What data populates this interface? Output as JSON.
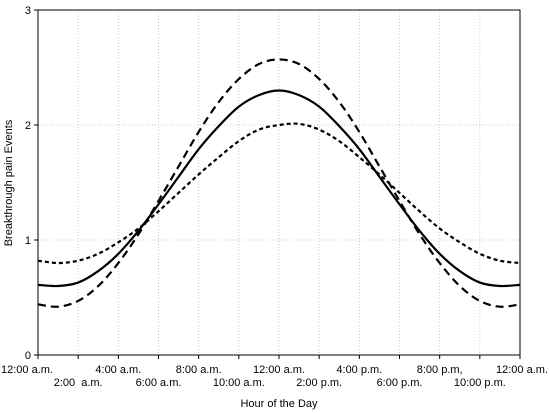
{
  "chart_data": {
    "type": "line",
    "title": "",
    "xlabel": "Hour of the Day",
    "ylabel": "Breakthrough pain Events",
    "xlim": [
      0,
      24
    ],
    "ylim": [
      0,
      3
    ],
    "y_ticks": [
      0,
      1,
      2,
      3
    ],
    "x_ticks": [
      {
        "hour": 0,
        "label": "12:00 a.m.",
        "row": 1
      },
      {
        "hour": 2,
        "label": "2:00  a.m.",
        "row": 2
      },
      {
        "hour": 4,
        "label": "4:00 a.m.",
        "row": 1
      },
      {
        "hour": 6,
        "label": "6:00 a.m.",
        "row": 2
      },
      {
        "hour": 8,
        "label": "8:00 a.m.",
        "row": 1
      },
      {
        "hour": 10,
        "label": "10:00 a.m.",
        "row": 2
      },
      {
        "hour": 12,
        "label": "12:00 a.m.",
        "row": 1
      },
      {
        "hour": 14,
        "label": "2:00 p.m.",
        "row": 2
      },
      {
        "hour": 16,
        "label": "4:00 p.m.",
        "row": 1
      },
      {
        "hour": 18,
        "label": "6:00 p.m.",
        "row": 2
      },
      {
        "hour": 20,
        "label": "8:00 p.m,",
        "row": 1
      },
      {
        "hour": 22,
        "label": "10:00 p.m.",
        "row": 2
      },
      {
        "hour": 24,
        "label": "12:00 a.m.",
        "row": 1
      }
    ],
    "grid": true,
    "series": [
      {
        "style": "solid",
        "x": [
          0,
          1,
          2,
          3,
          4,
          5,
          6,
          7,
          8,
          9,
          10,
          11,
          12,
          13,
          14,
          15,
          16,
          17,
          18,
          19,
          20,
          21,
          22,
          23,
          24
        ],
        "y": [
          0.61,
          0.6,
          0.63,
          0.73,
          0.88,
          1.08,
          1.31,
          1.55,
          1.79,
          1.99,
          2.16,
          2.26,
          2.3,
          2.26,
          2.16,
          1.99,
          1.79,
          1.55,
          1.31,
          1.08,
          0.88,
          0.73,
          0.63,
          0.6,
          0.61
        ]
      },
      {
        "style": "dashed",
        "x": [
          0,
          1,
          2,
          3,
          4,
          5,
          6,
          7,
          8,
          9,
          10,
          11,
          12,
          13,
          14,
          15,
          16,
          17,
          18,
          19,
          20,
          21,
          22,
          23,
          24
        ],
        "y": [
          0.44,
          0.42,
          0.47,
          0.6,
          0.8,
          1.05,
          1.34,
          1.64,
          1.94,
          2.2,
          2.4,
          2.53,
          2.57,
          2.53,
          2.4,
          2.2,
          1.94,
          1.64,
          1.34,
          1.05,
          0.8,
          0.6,
          0.47,
          0.42,
          0.44
        ]
      },
      {
        "style": "dotted",
        "x": [
          0,
          1,
          2,
          3,
          4,
          5,
          6,
          7,
          8,
          9,
          10,
          11,
          12,
          13,
          14,
          15,
          16,
          17,
          18,
          19,
          20,
          21,
          22,
          23,
          24
        ],
        "y": [
          0.82,
          0.8,
          0.82,
          0.88,
          0.98,
          1.1,
          1.25,
          1.41,
          1.57,
          1.72,
          1.86,
          1.96,
          2.0,
          2.01,
          1.96,
          1.86,
          1.72,
          1.57,
          1.41,
          1.25,
          1.1,
          0.98,
          0.88,
          0.82,
          0.8
        ]
      }
    ]
  }
}
